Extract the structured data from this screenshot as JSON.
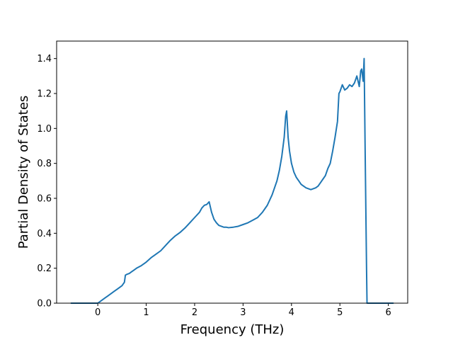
{
  "chart_data": {
    "type": "line",
    "title": "",
    "xlabel": "Frequency (THz)",
    "ylabel": "Partial Density of States",
    "xlim": [
      -0.85,
      6.4
    ],
    "ylim": [
      0.0,
      1.5
    ],
    "xticks": [
      0,
      1,
      2,
      3,
      4,
      5,
      6
    ],
    "yticks": [
      0.0,
      0.2,
      0.4,
      0.6,
      0.8,
      1.0,
      1.2,
      1.4
    ],
    "xtick_labels": [
      "0",
      "1",
      "2",
      "3",
      "4",
      "5",
      "6"
    ],
    "ytick_labels": [
      "0.0",
      "0.2",
      "0.4",
      "0.6",
      "0.8",
      "1.0",
      "1.2",
      "1.4"
    ],
    "grid": false,
    "legend": "none",
    "series": [
      {
        "color": "#1f77b4",
        "x": [
          -0.55,
          -0.2,
          0.0,
          0.05,
          0.1,
          0.15,
          0.2,
          0.25,
          0.3,
          0.35,
          0.4,
          0.45,
          0.5,
          0.55,
          0.57,
          0.6,
          0.65,
          0.7,
          0.75,
          0.8,
          0.9,
          1.0,
          1.1,
          1.2,
          1.3,
          1.4,
          1.5,
          1.6,
          1.7,
          1.8,
          1.9,
          2.0,
          2.1,
          2.15,
          2.2,
          2.25,
          2.3,
          2.35,
          2.4,
          2.45,
          2.5,
          2.55,
          2.6,
          2.65,
          2.7,
          2.8,
          2.9,
          3.0,
          3.1,
          3.2,
          3.3,
          3.4,
          3.5,
          3.6,
          3.65,
          3.7,
          3.75,
          3.8,
          3.85,
          3.88,
          3.9,
          3.93,
          3.96,
          4.0,
          4.05,
          4.1,
          4.15,
          4.2,
          4.3,
          4.4,
          4.45,
          4.5,
          4.55,
          4.6,
          4.65,
          4.7,
          4.75,
          4.8,
          4.85,
          4.9,
          4.95,
          4.98,
          5.0,
          5.05,
          5.1,
          5.15,
          5.2,
          5.25,
          5.3,
          5.35,
          5.4,
          5.43,
          5.45,
          5.48,
          5.5,
          5.52,
          5.55,
          5.56,
          5.6,
          6.0,
          6.1
        ],
        "y": [
          0.0,
          0.0,
          0.0,
          0.01,
          0.02,
          0.03,
          0.04,
          0.05,
          0.06,
          0.07,
          0.08,
          0.09,
          0.1,
          0.12,
          0.16,
          0.165,
          0.17,
          0.18,
          0.19,
          0.2,
          0.215,
          0.235,
          0.26,
          0.28,
          0.3,
          0.33,
          0.36,
          0.385,
          0.405,
          0.43,
          0.46,
          0.49,
          0.52,
          0.545,
          0.56,
          0.565,
          0.58,
          0.52,
          0.48,
          0.46,
          0.445,
          0.44,
          0.435,
          0.435,
          0.432,
          0.435,
          0.44,
          0.45,
          0.46,
          0.475,
          0.49,
          0.52,
          0.56,
          0.62,
          0.66,
          0.7,
          0.76,
          0.84,
          0.95,
          1.07,
          1.1,
          0.95,
          0.87,
          0.8,
          0.75,
          0.72,
          0.7,
          0.68,
          0.66,
          0.65,
          0.655,
          0.66,
          0.67,
          0.69,
          0.71,
          0.73,
          0.77,
          0.8,
          0.87,
          0.95,
          1.04,
          1.2,
          1.21,
          1.25,
          1.22,
          1.23,
          1.25,
          1.24,
          1.26,
          1.3,
          1.24,
          1.33,
          1.34,
          1.27,
          1.4,
          0.9,
          0.2,
          0.0,
          0.0,
          0.0,
          0.0
        ]
      }
    ]
  }
}
